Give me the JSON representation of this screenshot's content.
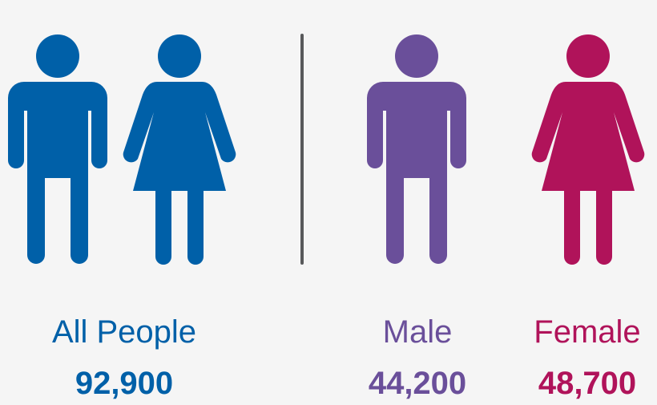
{
  "colors": {
    "all": "#0060a8",
    "male": "#6a4f9a",
    "female": "#b0135a",
    "divider": "#58595b",
    "background": "#f5f5f5"
  },
  "groups": {
    "all": {
      "label": "All People",
      "value": "92,900",
      "icons": [
        "male-figure-icon",
        "female-figure-icon"
      ]
    },
    "male": {
      "label": "Male",
      "value": "44,200",
      "icon": "male-figure-icon"
    },
    "female": {
      "label": "Female",
      "value": "48,700",
      "icon": "female-figure-icon"
    }
  }
}
